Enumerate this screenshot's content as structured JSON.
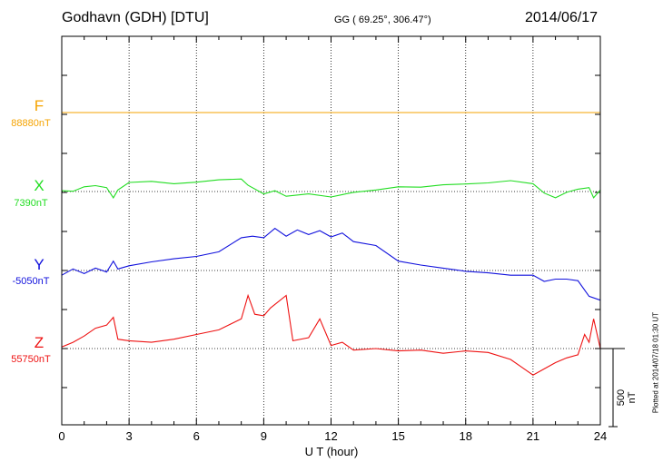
{
  "header": {
    "station": "Godhavn (GDH)  [DTU]",
    "coords": "GG ( 69.25°, 306.47°)",
    "date": "2014/06/17"
  },
  "scale_label": "500 nT",
  "plotted_note": "Plotted at 2014/07/18 01:30 UT",
  "chart_data": {
    "type": "line",
    "title": "Godhavn (GDH)  [DTU]",
    "xlabel": "U T (hour)",
    "ylabel": "",
    "xlim": [
      0,
      24
    ],
    "x_ticks": [
      "0",
      "3",
      "6",
      "9",
      "12",
      "15",
      "18",
      "21",
      "24"
    ],
    "scale_bar_nT": 500,
    "series": [
      {
        "name": "F",
        "color": "#f5a300",
        "base_label": "88880nT",
        "base_nT": 88880,
        "x": [
          0,
          24
        ],
        "values": [
          88880,
          88880
        ]
      },
      {
        "name": "X",
        "color": "#22dd22",
        "base_label": "7390nT",
        "base_nT": 7390,
        "x": [
          0,
          0.5,
          1.0,
          1.5,
          2.0,
          2.3,
          2.5,
          3.0,
          4.0,
          5.0,
          6.0,
          7.0,
          8.0,
          8.3,
          9.0,
          9.5,
          10.0,
          11.0,
          12.0,
          12.5,
          13.0,
          14.0,
          15.0,
          16.0,
          17.0,
          18.0,
          19.0,
          20.0,
          21.0,
          21.5,
          22.0,
          22.5,
          23.0,
          23.5,
          23.7,
          24.0
        ],
        "values": [
          7395,
          7392,
          7420,
          7428,
          7415,
          7350,
          7400,
          7448,
          7455,
          7440,
          7450,
          7465,
          7470,
          7430,
          7375,
          7395,
          7360,
          7375,
          7355,
          7370,
          7385,
          7400,
          7420,
          7418,
          7433,
          7438,
          7445,
          7460,
          7440,
          7380,
          7350,
          7385,
          7405,
          7415,
          7350,
          7400
        ]
      },
      {
        "name": "Y",
        "color": "#1111dd",
        "base_label": "-5050nT",
        "base_nT": -5050,
        "x": [
          0,
          0.5,
          1.0,
          1.5,
          2.0,
          2.3,
          2.5,
          3.0,
          4.0,
          5.0,
          6.0,
          7.0,
          8.0,
          8.5,
          9.0,
          9.5,
          10.0,
          10.5,
          11.0,
          11.5,
          12.0,
          12.5,
          13.0,
          14.0,
          15.0,
          16.0,
          17.0,
          18.0,
          19.0,
          20.0,
          21.0,
          21.5,
          22.0,
          22.5,
          23.0,
          23.5,
          24.0
        ],
        "values": [
          -5080,
          -5040,
          -5070,
          -5035,
          -5060,
          -4990,
          -5040,
          -5020,
          -4995,
          -4975,
          -4960,
          -4930,
          -4840,
          -4830,
          -4840,
          -4780,
          -4830,
          -4790,
          -4820,
          -4795,
          -4835,
          -4810,
          -4865,
          -4890,
          -4990,
          -5015,
          -5035,
          -5055,
          -5065,
          -5080,
          -5080,
          -5120,
          -5105,
          -5105,
          -5115,
          -5215,
          -5240
        ]
      },
      {
        "name": "Z",
        "color": "#ee1111",
        "base_label": "55750nT",
        "base_nT": 55750,
        "x": [
          0,
          0.5,
          1.0,
          1.5,
          2.0,
          2.3,
          2.5,
          3.0,
          4.0,
          5.0,
          6.0,
          7.0,
          8.0,
          8.3,
          8.6,
          9.0,
          9.3,
          10.0,
          10.3,
          11.0,
          11.5,
          12.0,
          12.5,
          13.0,
          14.0,
          15.0,
          16.0,
          17.0,
          18.0,
          19.0,
          20.0,
          20.5,
          21.0,
          21.5,
          22.0,
          22.5,
          23.0,
          23.3,
          23.5,
          23.7,
          24.0
        ],
        "values": [
          55760,
          55790,
          55830,
          55880,
          55900,
          55950,
          55810,
          55800,
          55790,
          55810,
          55840,
          55870,
          55940,
          56090,
          55970,
          55960,
          56010,
          56090,
          55800,
          55820,
          55940,
          55770,
          55790,
          55740,
          55750,
          55735,
          55740,
          55720,
          55735,
          55725,
          55680,
          55630,
          55580,
          55620,
          55660,
          55690,
          55710,
          55840,
          55790,
          55940,
          55750
        ]
      }
    ]
  }
}
